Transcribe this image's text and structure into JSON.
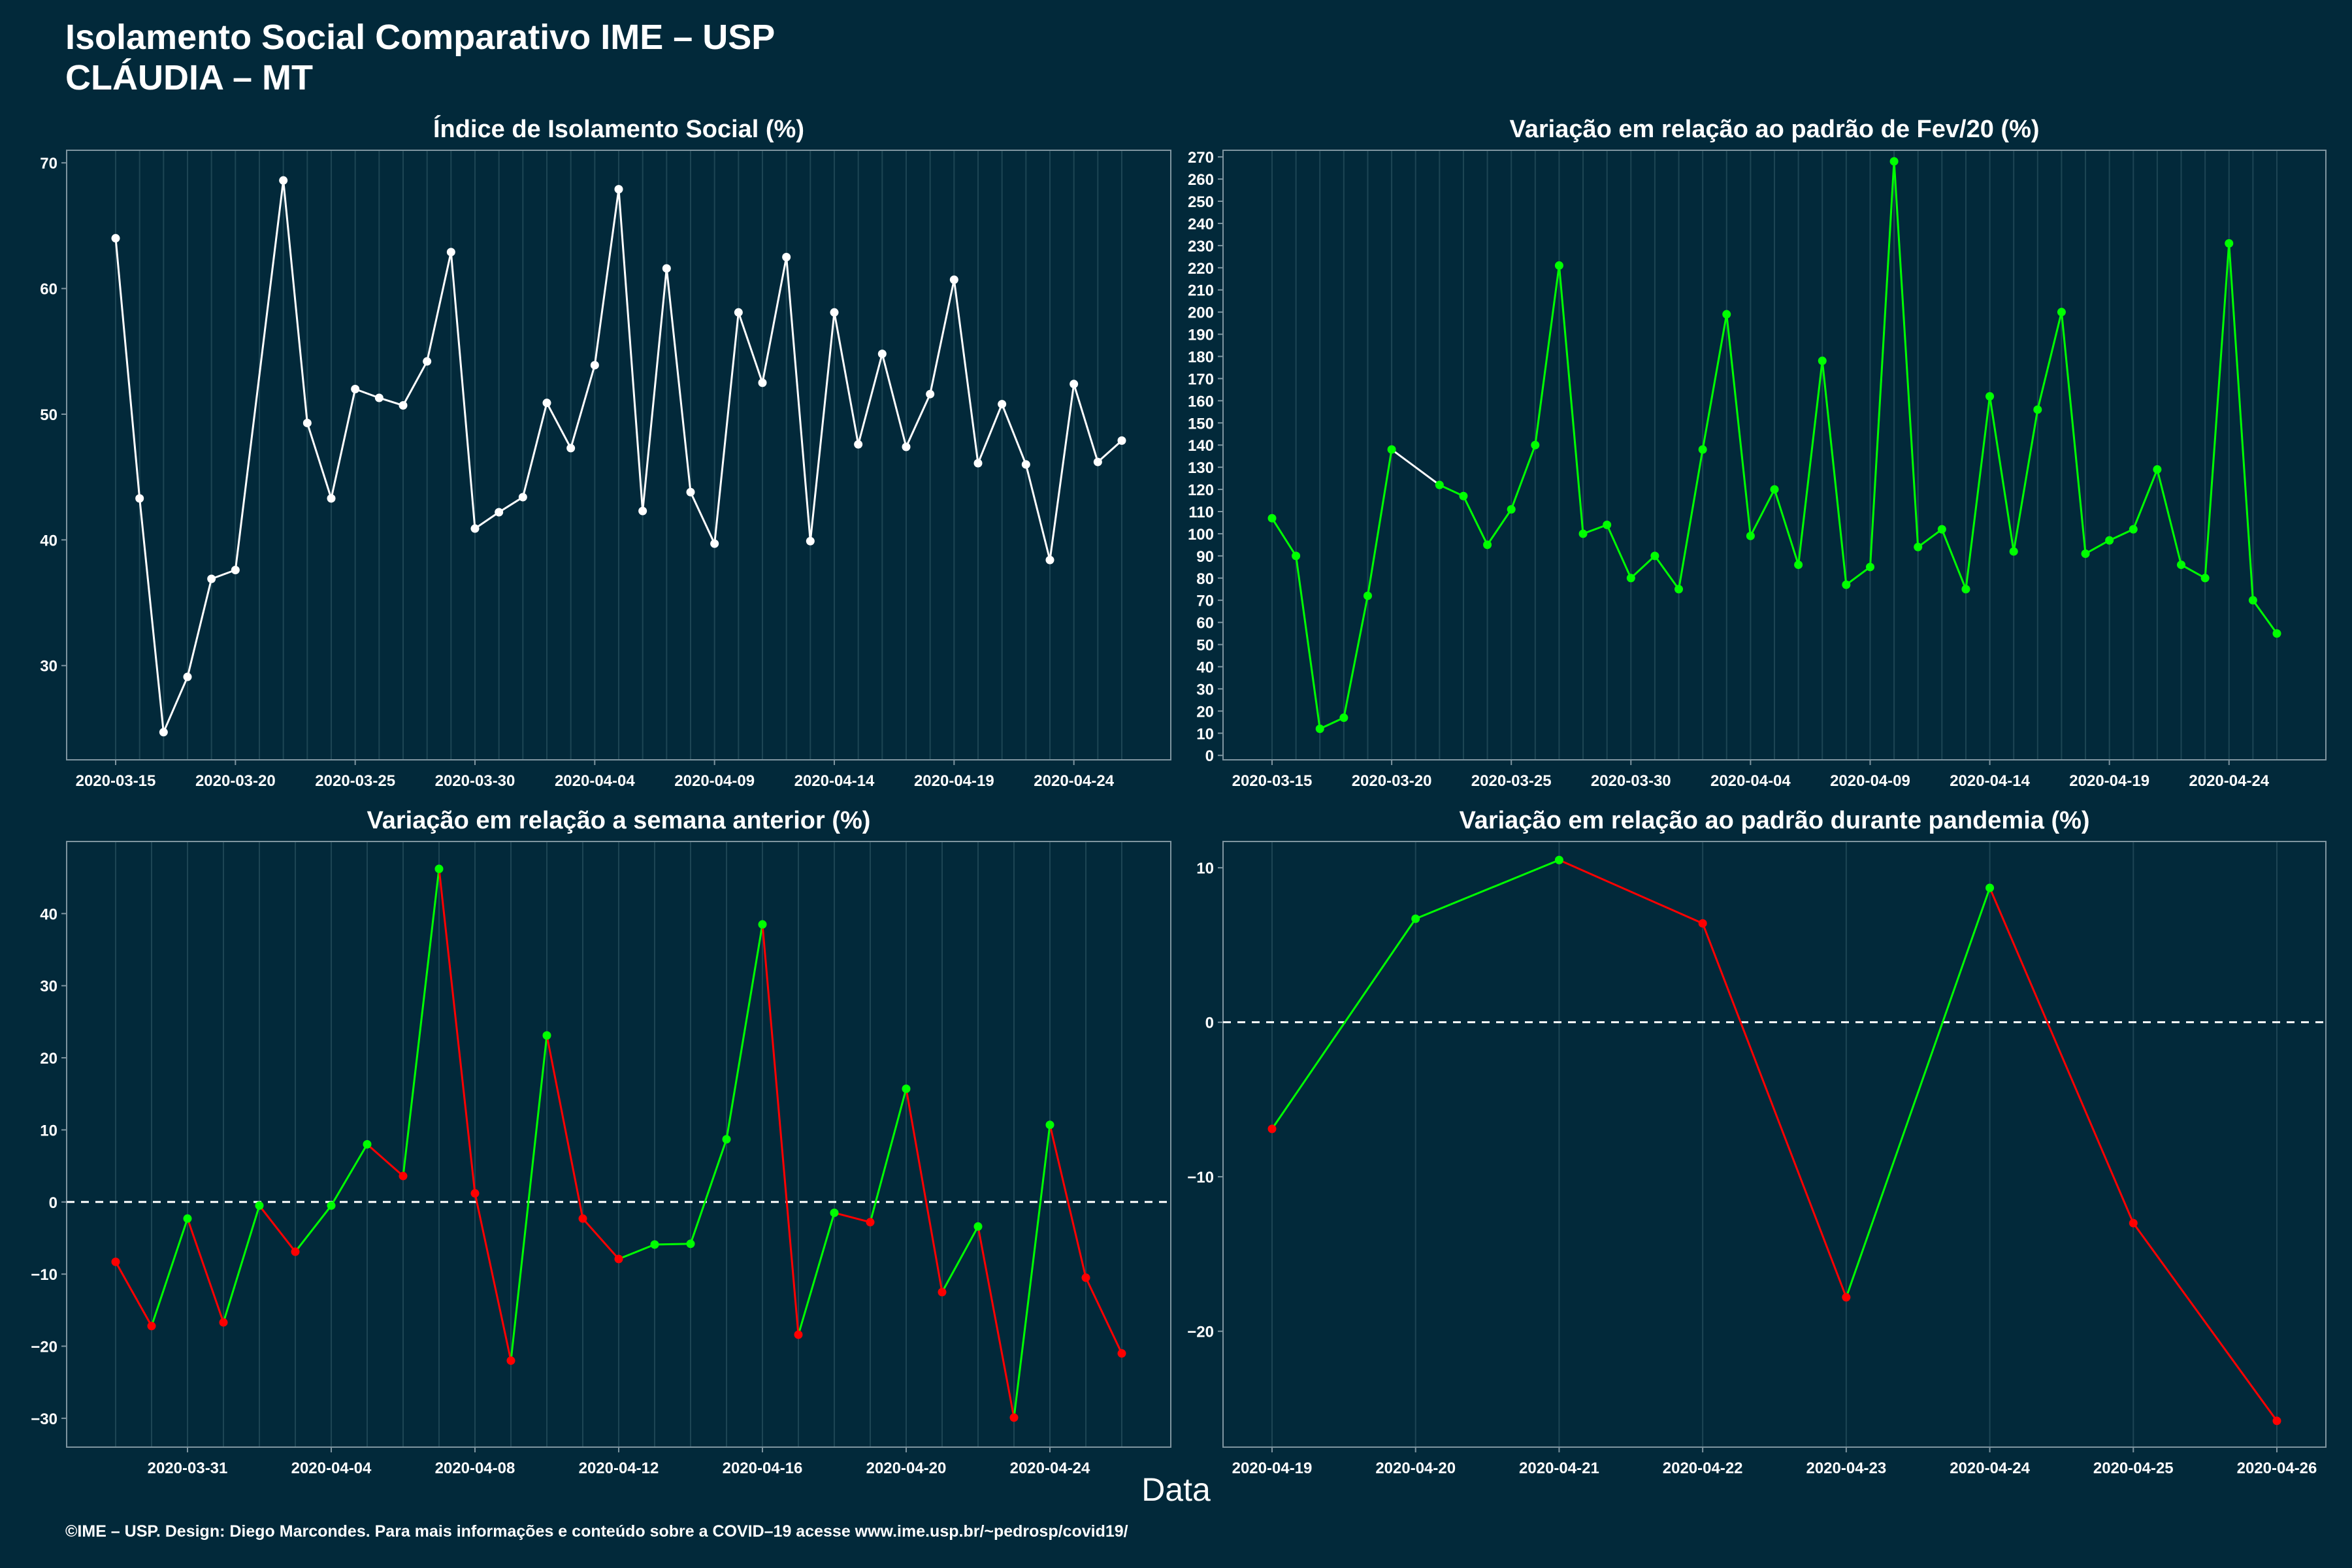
{
  "header": {
    "title_line1": "Isolamento Social Comparativo IME – USP",
    "title_line2": "CLÁUDIA – MT"
  },
  "x_title": "Data",
  "footer": "©IME – USP. Design: Diego Marcondes. Para mais informações e conteúdo sobre a COVID–19 acesse www.ime.usp.br/~pedrosp/covid19/",
  "colors": {
    "background": "#02293a",
    "grid": "#1d4554",
    "axis": "#7f95a0",
    "white_series": "#ffffff",
    "positive": "#00ff00",
    "negative": "#ff0000"
  },
  "chart_data": [
    {
      "id": "p1",
      "type": "line",
      "title": "Índice de Isolamento Social (%)",
      "start_date": "2020-03-15",
      "ylim": [
        22.5,
        71
      ],
      "yticks": [
        30,
        40,
        50,
        60,
        70
      ],
      "xticks": [
        "2020-03-15",
        "2020-03-20",
        "2020-03-25",
        "2020-03-30",
        "2020-04-04",
        "2020-04-09",
        "2020-04-14",
        "2020-04-19",
        "2020-04-24"
      ],
      "color_mode": "white",
      "series": [
        {
          "values": [
            64.0,
            43.3,
            24.7,
            29.1,
            36.9,
            37.6,
            null,
            68.6,
            49.3,
            43.3,
            52.0,
            51.3,
            50.7,
            54.2,
            62.9,
            40.9,
            42.2,
            43.4,
            50.9,
            47.3,
            53.9,
            67.9,
            42.3,
            61.6,
            43.8,
            39.7,
            58.1,
            52.5,
            62.5,
            39.9,
            58.1,
            47.6,
            54.8,
            47.4,
            51.6,
            60.7,
            46.1,
            50.8,
            46.0,
            38.4,
            52.4,
            46.2,
            47.9
          ]
        }
      ]
    },
    {
      "id": "p2",
      "type": "line",
      "title": "Variação em relação ao padrão de Fev/20 (%)",
      "start_date": "2020-03-15",
      "ylim": [
        -2,
        273
      ],
      "yticks": [
        0,
        10,
        20,
        30,
        40,
        50,
        60,
        70,
        80,
        90,
        100,
        110,
        120,
        130,
        140,
        150,
        160,
        170,
        180,
        190,
        200,
        210,
        220,
        230,
        240,
        250,
        260,
        270
      ],
      "xticks": [
        "2020-03-15",
        "2020-03-20",
        "2020-03-25",
        "2020-03-30",
        "2020-04-04",
        "2020-04-09",
        "2020-04-14",
        "2020-04-19",
        "2020-04-24"
      ],
      "color_mode": "green",
      "series": [
        {
          "values": [
            107,
            90,
            12,
            17,
            72,
            138,
            null,
            122,
            117,
            95,
            111,
            140,
            221,
            100,
            104,
            80,
            90,
            75,
            138,
            199,
            99,
            120,
            86,
            178,
            77,
            85,
            268,
            94,
            102,
            75,
            162,
            92,
            156,
            200,
            91,
            97,
            102,
            129,
            86,
            80,
            231,
            70,
            55
          ]
        }
      ]
    },
    {
      "id": "p3",
      "type": "line",
      "title": "Variação em relação a semana anterior (%)",
      "start_date": "2020-03-29",
      "ylim": [
        -34,
        50
      ],
      "yticks": [
        -30,
        -20,
        -10,
        0,
        10,
        20,
        30,
        40
      ],
      "xticks": [
        "2020-03-31",
        "2020-04-04",
        "2020-04-08",
        "2020-04-12",
        "2020-04-16",
        "2020-04-20",
        "2020-04-24"
      ],
      "color_mode": "sign",
      "reference_line": 0,
      "series": [
        {
          "values": [
            -8.3,
            -17.2,
            -2.3,
            -16.7,
            -0.5,
            -6.9,
            -0.5,
            8.0,
            3.6,
            46.2,
            1.2,
            -22.0,
            23.1,
            -2.3,
            -7.9,
            -5.9,
            -5.8,
            8.7,
            38.5,
            -18.4,
            -1.5,
            -2.8,
            15.7,
            -12.5,
            -3.4,
            -29.9,
            10.7,
            -10.5,
            -21.0
          ]
        }
      ]
    },
    {
      "id": "p4",
      "type": "line",
      "title": "Variação em relação ao padrão durante pandemia (%)",
      "start_date": "2020-04-19",
      "ylim": [
        -27.5,
        11.7
      ],
      "yticks": [
        -20,
        -10,
        0,
        10
      ],
      "xticks": [
        "2020-04-19",
        "2020-04-20",
        "2020-04-21",
        "2020-04-22",
        "2020-04-23",
        "2020-04-24",
        "2020-04-25",
        "2020-04-26"
      ],
      "color_mode": "sign",
      "reference_line": 0,
      "series": [
        {
          "values": [
            -6.9,
            6.7,
            10.5,
            6.4,
            -17.8,
            8.7,
            -13.0,
            -25.8
          ]
        }
      ]
    }
  ]
}
